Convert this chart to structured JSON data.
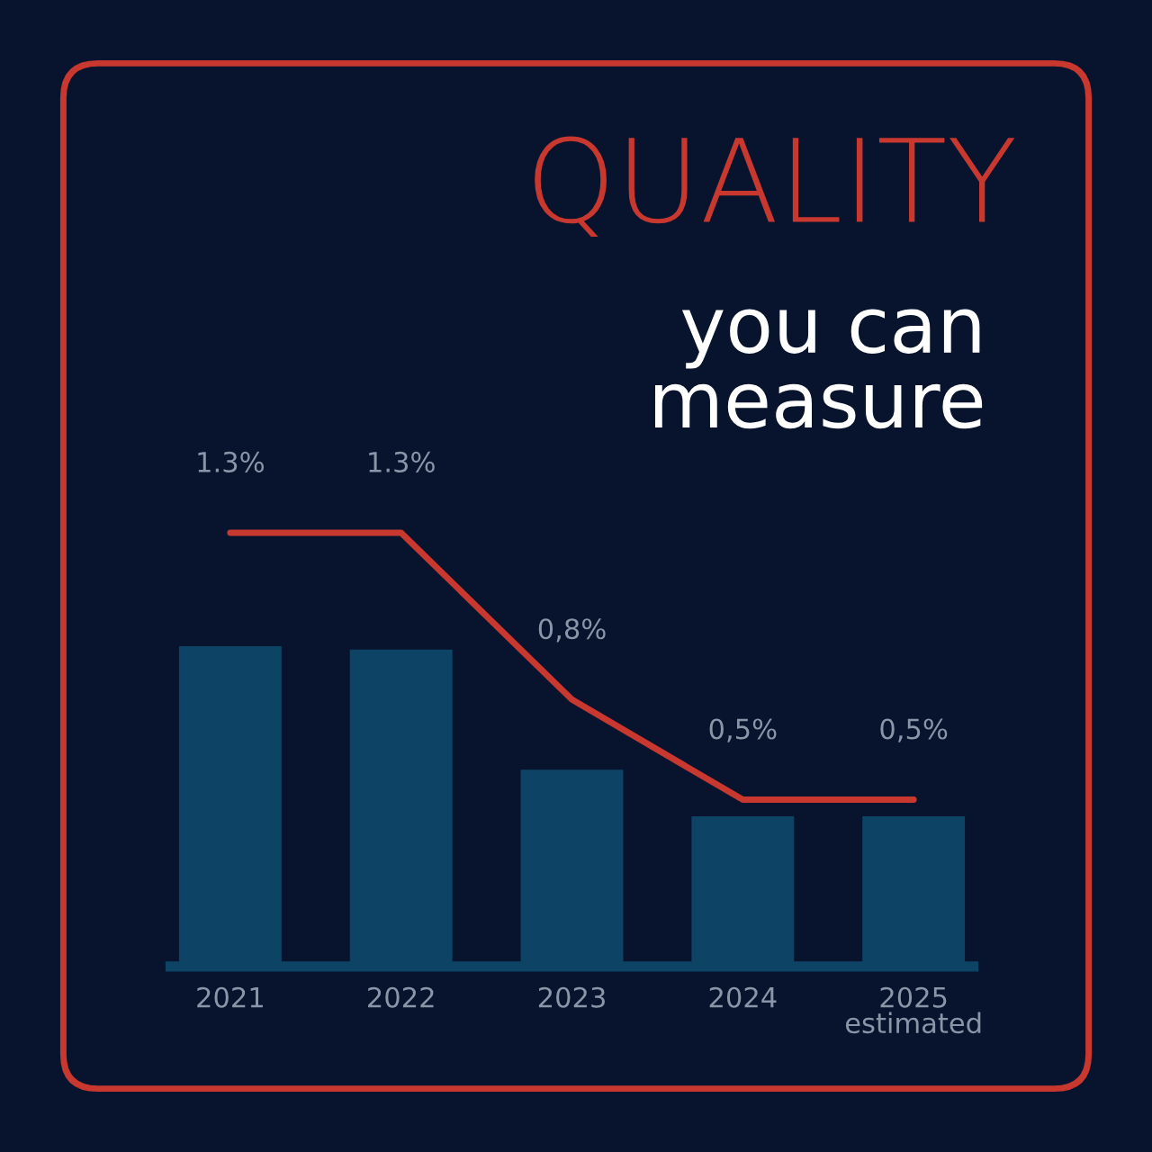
{
  "chart_data": {
    "type": "bar",
    "title": "QUALITY",
    "subtitle": "you can\nmeasure",
    "categories": [
      "2021",
      "2022",
      "2023",
      "2024",
      "2025\nestimated"
    ],
    "grid": false,
    "legend": false,
    "tick_labels": "x",
    "series": [
      {
        "color": "#0d4466",
        "values": [
          0.96,
          0.95,
          0.59,
          0.45,
          0.45
        ]
      },
      {
        "type": "line",
        "color": "#c8382f",
        "values": [
          1.3,
          1.3,
          0.8,
          0.5,
          0.5
        ],
        "value_labels": [
          "1.3%",
          "1.3%",
          "0,8%",
          "0,5%",
          "0,5%"
        ]
      }
    ]
  }
}
